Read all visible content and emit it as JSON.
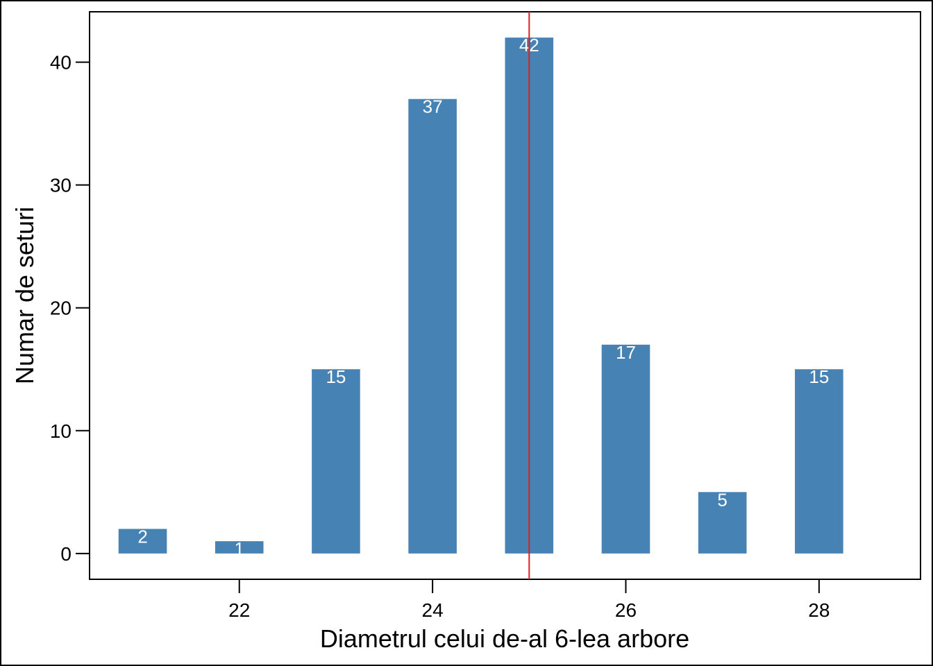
{
  "chart_data": {
    "type": "bar",
    "title": "",
    "xlabel": "Diametrul celui de-al 6-lea arbore",
    "ylabel": "Numar de seturi",
    "x": [
      21,
      22,
      23,
      24,
      25,
      26,
      27,
      28
    ],
    "values": [
      2,
      1,
      15,
      37,
      42,
      17,
      5,
      15
    ],
    "data_labels": [
      "2",
      "1",
      "15",
      "37",
      "42",
      "17",
      "5",
      "15"
    ],
    "xlim": [
      20.45,
      29.05
    ],
    "ylim": [
      -2.1,
      44.1
    ],
    "x_ticks": [
      22,
      24,
      26,
      28
    ],
    "x_tick_labels": [
      "22",
      "24",
      "26",
      "28"
    ],
    "y_ticks": [
      0,
      10,
      20,
      30,
      40
    ],
    "y_tick_labels": [
      "0",
      "10",
      "20",
      "30",
      "40"
    ],
    "bar_width": 0.5,
    "reference_line": {
      "x": 25,
      "color": "#e41a1c"
    },
    "bar_color": "#4682b4",
    "label_color": "#ffffff",
    "grid": false,
    "legend": "none"
  }
}
